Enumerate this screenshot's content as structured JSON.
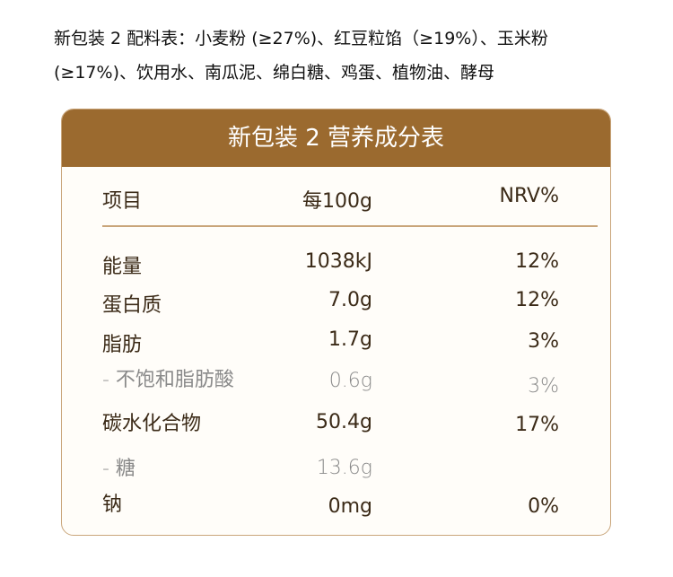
{
  "ingredients": "新包装 2 配料表：小麦粉 (≥27%)、红豆粒馅（≥19%）、玉米粉 (≥17%)、饮用水、南瓜泥、绵白糖、鸡蛋、植物油、酵母",
  "table": {
    "title": "新包装 2 营养成分表",
    "header": [
      "项目",
      "每100g",
      "NRV%"
    ],
    "rows": [
      [
        "能量",
        "1038kJ",
        "12%"
      ],
      [
        "蛋白质",
        "7.0g",
        "12%"
      ],
      [
        "脂肪",
        "1.7g",
        "3%"
      ],
      [
        "- 不饱和脂肪酸",
        "0.6g",
        "3%"
      ],
      [
        "碳水化合物",
        "50.4g",
        "17%"
      ],
      [
        "- 糖",
        "13.6g"
      ],
      [
        "钠",
        "0mg",
        "0%"
      ]
    ]
  }
}
